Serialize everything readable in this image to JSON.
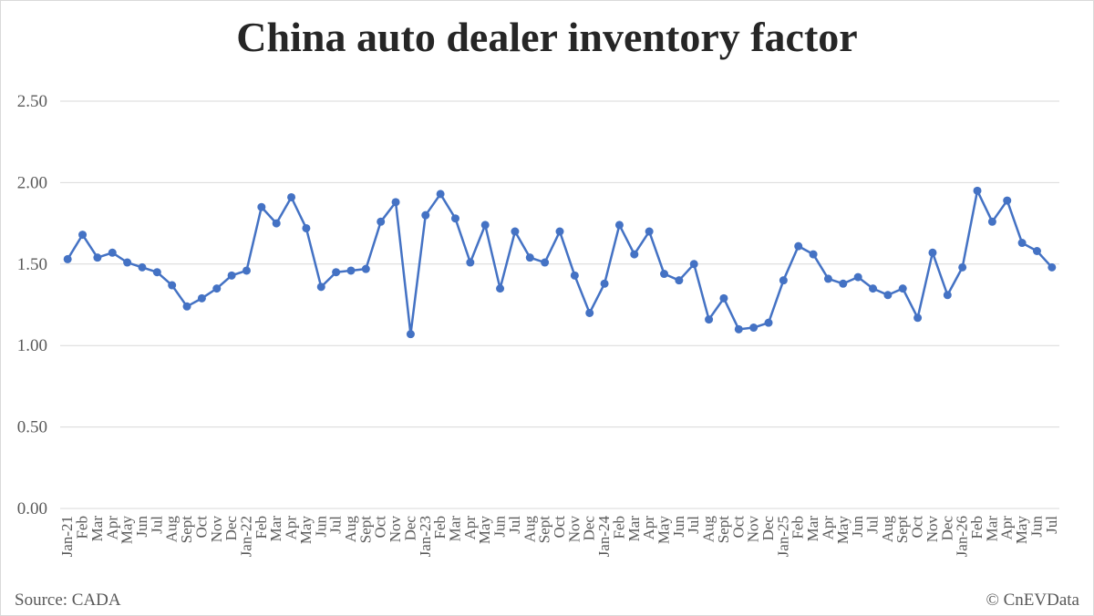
{
  "chart_data": {
    "type": "line",
    "title": "China auto dealer inventory factor",
    "xlabel": "",
    "ylabel": "",
    "ylim": [
      0,
      2.5
    ],
    "yticks": [
      "0.00",
      "0.50",
      "1.00",
      "1.50",
      "2.00",
      "2.50"
    ],
    "grid": true,
    "legend": "none",
    "line_color": "#4472c4",
    "grid_color": "#d9d9d9",
    "categories": [
      "Jan-21",
      "Feb",
      "Mar",
      "Apr",
      "May",
      "Jun",
      "Jul",
      "Aug",
      "Sept",
      "Oct",
      "Nov",
      "Dec",
      "Jan-22",
      "Feb",
      "Mar",
      "Apr",
      "May",
      "Jun",
      "Jul",
      "Aug",
      "Sept",
      "Oct",
      "Nov",
      "Dec",
      "Jan-23",
      "Feb",
      "Mar",
      "Apr",
      "May",
      "Jun",
      "Jul",
      "Aug",
      "Sept",
      "Oct",
      "Nov",
      "Dec",
      "Jan-24",
      "Feb",
      "Mar",
      "Apr",
      "May",
      "Jun",
      "Jul",
      "Aug",
      "Sept",
      "Oct",
      "Nov",
      "Dec",
      "Jan-25",
      "Feb",
      "Mar",
      "Apr",
      "May",
      "Jun",
      "Jul",
      "Aug",
      "Sept",
      "Oct",
      "Nov",
      "Dec",
      "Jan-26",
      "Feb",
      "Mar",
      "Apr",
      "May",
      "Jun",
      "Jul"
    ],
    "values": [
      1.53,
      1.68,
      1.54,
      1.57,
      1.51,
      1.48,
      1.45,
      1.37,
      1.24,
      1.29,
      1.35,
      1.43,
      1.46,
      1.85,
      1.75,
      1.91,
      1.72,
      1.36,
      1.45,
      1.46,
      1.47,
      1.76,
      1.88,
      1.07,
      1.8,
      1.93,
      1.78,
      1.51,
      1.74,
      1.35,
      1.7,
      1.54,
      1.51,
      1.7,
      1.43,
      1.2,
      1.38,
      1.74,
      1.56,
      1.7,
      1.44,
      1.4,
      1.5,
      1.16,
      1.29,
      1.1,
      1.11,
      1.14,
      1.4,
      1.61,
      1.56,
      1.41,
      1.38,
      1.42,
      1.35,
      1.31,
      1.35,
      1.17,
      1.57,
      1.31,
      1.48,
      1.95,
      1.76,
      1.89,
      1.63,
      1.58,
      1.48
    ]
  },
  "footer": {
    "source": "Source: CADA",
    "credit": "© CnEVData"
  }
}
